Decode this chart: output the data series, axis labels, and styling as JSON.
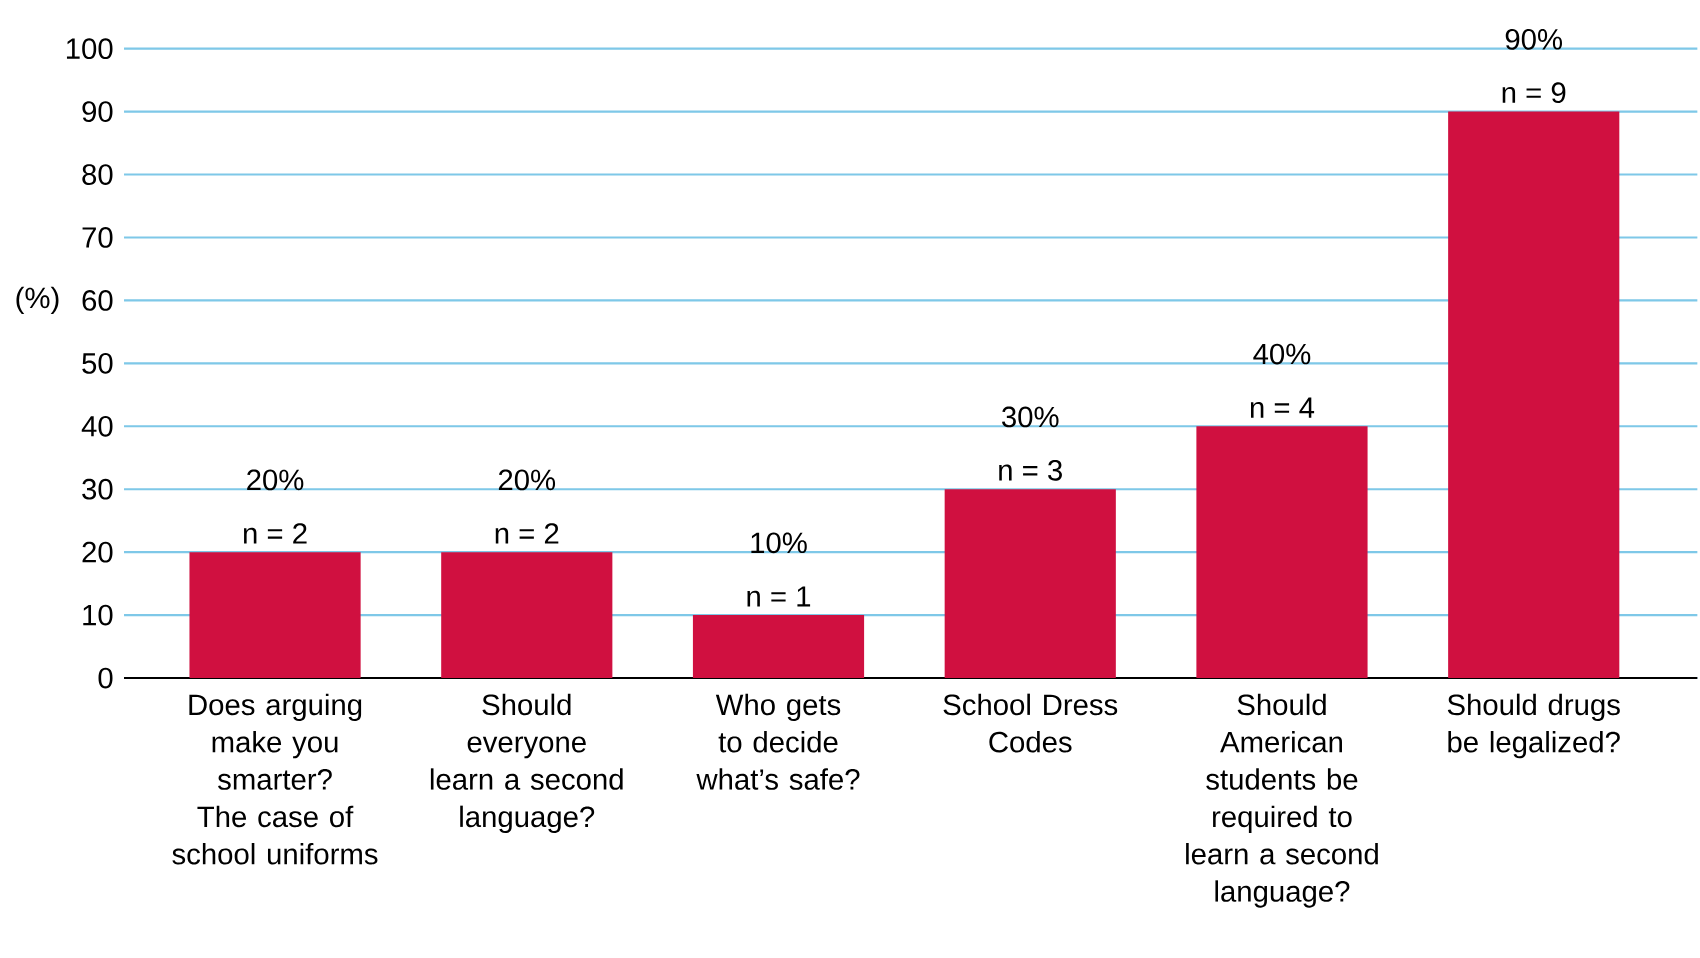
{
  "chart_data": {
    "type": "bar",
    "ylabel": "(%)",
    "categories": [
      "Does arguing make you smarter? The case of school uniforms",
      "Should everyone learn a second language?",
      "Who gets to decide what’s safe?",
      "School Dress Codes",
      "Should American students be required to learn a second language?",
      "Should drugs be legalized?"
    ],
    "values": [
      20,
      20,
      10,
      30,
      40,
      90
    ],
    "color": "#d01040",
    "value_labels": [
      "20%",
      "20%",
      "10%",
      "30%",
      "40%",
      "90%"
    ],
    "annotations": [
      {
        "text": "n = 2",
        "x": "Does arguing make you smarter? The case of school uniforms",
        "y": 20
      },
      {
        "text": "n = 2",
        "x": "Should everyone learn a second language?",
        "y": 20
      },
      {
        "text": "n = 1",
        "x": "Who gets to decide what’s safe?",
        "y": 10
      },
      {
        "text": "n = 3",
        "x": "School Dress Codes",
        "y": 30
      },
      {
        "text": "n = 4",
        "x": "Should American students be required to learn a second language?",
        "y": 40
      },
      {
        "text": "n = 9",
        "x": "Should drugs be legalized?",
        "y": 90
      }
    ],
    "ylim": [
      0,
      100
    ],
    "yticks": [
      0,
      10,
      20,
      30,
      40,
      50,
      60,
      70,
      80,
      90,
      100
    ],
    "grid": "y"
  }
}
